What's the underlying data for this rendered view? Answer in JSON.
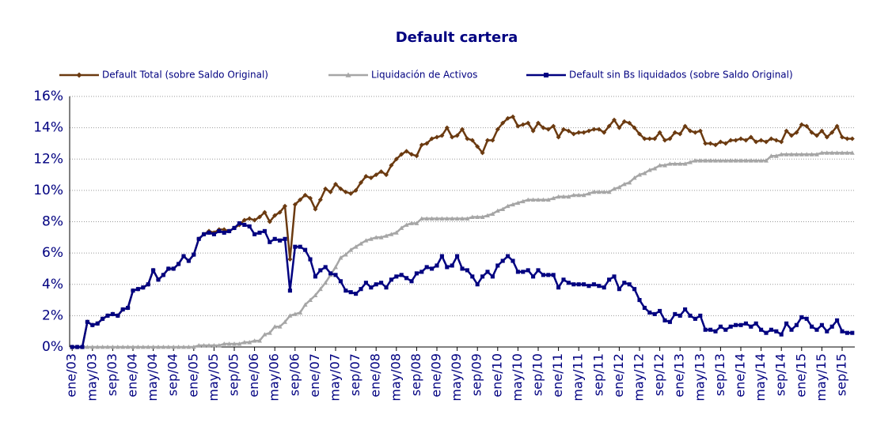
{
  "chart_data": {
    "type": "line",
    "title": "Default cartera",
    "categories": [
      "ene/03",
      null,
      null,
      null,
      "may/03",
      null,
      null,
      null,
      "sep/03",
      null,
      null,
      null,
      "ene/04",
      null,
      null,
      null,
      "may/04",
      null,
      null,
      null,
      "sep/04",
      null,
      null,
      null,
      "ene/05",
      null,
      null,
      null,
      "may/05",
      null,
      null,
      null,
      "sep/05",
      null,
      null,
      null,
      "ene/06",
      null,
      null,
      null,
      "may/06",
      null,
      null,
      null,
      "sep/06",
      null,
      null,
      null,
      "ene/07",
      null,
      null,
      null,
      "may/07",
      null,
      null,
      null,
      "sep/07",
      null,
      null,
      null,
      "ene/08",
      null,
      null,
      null,
      "may/08",
      null,
      null,
      null,
      "sep/08",
      null,
      null,
      null,
      "ene/09",
      null,
      null,
      null,
      "may/09",
      null,
      null,
      null,
      "sep/09",
      null,
      null,
      null,
      "ene/10",
      null,
      null,
      null,
      "may/10",
      null,
      null,
      null,
      "sep/10",
      null,
      null,
      null,
      "ene/11",
      null,
      null,
      null,
      "may/11",
      null,
      null,
      null,
      "sep/11",
      null,
      null,
      null,
      "ene/12",
      null,
      null,
      null,
      "may/12",
      null,
      null,
      null,
      "sep/12",
      null,
      null,
      null,
      "ene/13",
      null,
      null,
      null,
      "may/13",
      null,
      null,
      null,
      "sep/13",
      null,
      null,
      null,
      "ene/14",
      null,
      null,
      null,
      "may/14",
      null,
      null,
      null,
      "sep/14",
      null,
      null,
      null,
      "ene/15",
      null,
      null,
      null,
      "may/15",
      null,
      null,
      null,
      "sep/15",
      null,
      null
    ],
    "series": [
      {
        "name": "Default Total (sobre Saldo Original)",
        "color": "#6b3a10",
        "marker": "diamond",
        "values": [
          0,
          0,
          0,
          1.6,
          1.4,
          1.5,
          1.8,
          2.0,
          2.1,
          2.0,
          2.4,
          2.5,
          3.6,
          3.7,
          3.8,
          4.0,
          4.9,
          4.3,
          4.6,
          5.0,
          5.0,
          5.3,
          5.8,
          5.5,
          5.9,
          6.9,
          7.2,
          7.4,
          7.3,
          7.5,
          7.5,
          7.4,
          7.6,
          7.8,
          8.1,
          8.2,
          8.1,
          8.3,
          8.6,
          8.0,
          8.4,
          8.6,
          9.0,
          5.6,
          9.1,
          9.4,
          9.7,
          9.5,
          8.8,
          9.4,
          10.1,
          9.9,
          10.4,
          10.1,
          9.9,
          9.8,
          10.0,
          10.5,
          10.9,
          10.8,
          11.0,
          11.2,
          11.0,
          11.6,
          12.0,
          12.3,
          12.5,
          12.3,
          12.2,
          12.9,
          13.0,
          13.3,
          13.4,
          13.5,
          14.0,
          13.4,
          13.5,
          13.9,
          13.3,
          13.2,
          12.8,
          12.4,
          13.2,
          13.2,
          13.9,
          14.3,
          14.6,
          14.7,
          14.1,
          14.2,
          14.3,
          13.8,
          14.3,
          14.0,
          13.9,
          14.1,
          13.4,
          13.9,
          13.8,
          13.6,
          13.7,
          13.7,
          13.8,
          13.9,
          13.9,
          13.7,
          14.1,
          14.5,
          14.0,
          14.4,
          14.3,
          14.0,
          13.6,
          13.3,
          13.3,
          13.3,
          13.7,
          13.2,
          13.3,
          13.7,
          13.6,
          14.1,
          13.8,
          13.7,
          13.8,
          13.0,
          13.0,
          12.9,
          13.1,
          13.0,
          13.2,
          13.2,
          13.3,
          13.2,
          13.4,
          13.1,
          13.2,
          13.1,
          13.3,
          13.2,
          13.1,
          13.8,
          13.5,
          13.7,
          14.2,
          14.1,
          13.7,
          13.5,
          13.8,
          13.4,
          13.7,
          14.1,
          13.4,
          13.3,
          13.3
        ]
      },
      {
        "name": "Liquidación de Activos",
        "color": "#a6a6a6",
        "marker": "triangle",
        "values": [
          0,
          0,
          0,
          0,
          0,
          0,
          0,
          0,
          0,
          0,
          0,
          0,
          0,
          0,
          0,
          0,
          0,
          0,
          0,
          0,
          0,
          0,
          0,
          0,
          0,
          0.1,
          0.1,
          0.1,
          0.1,
          0.1,
          0.2,
          0.2,
          0.2,
          0.2,
          0.3,
          0.3,
          0.4,
          0.4,
          0.8,
          0.9,
          1.3,
          1.3,
          1.6,
          2.0,
          2.1,
          2.2,
          2.7,
          3.0,
          3.3,
          3.7,
          4.1,
          4.6,
          5.1,
          5.7,
          5.9,
          6.2,
          6.4,
          6.6,
          6.8,
          6.9,
          7.0,
          7.0,
          7.1,
          7.2,
          7.3,
          7.6,
          7.8,
          7.9,
          7.9,
          8.2,
          8.2,
          8.2,
          8.2,
          8.2,
          8.2,
          8.2,
          8.2,
          8.2,
          8.2,
          8.3,
          8.3,
          8.3,
          8.4,
          8.5,
          8.7,
          8.8,
          9.0,
          9.1,
          9.2,
          9.3,
          9.4,
          9.4,
          9.4,
          9.4,
          9.4,
          9.5,
          9.6,
          9.6,
          9.6,
          9.7,
          9.7,
          9.7,
          9.8,
          9.9,
          9.9,
          9.9,
          9.9,
          10.1,
          10.2,
          10.4,
          10.5,
          10.8,
          11.0,
          11.1,
          11.3,
          11.4,
          11.6,
          11.6,
          11.7,
          11.7,
          11.7,
          11.7,
          11.8,
          11.9,
          11.9,
          11.9,
          11.9,
          11.9,
          11.9,
          11.9,
          11.9,
          11.9,
          11.9,
          11.9,
          11.9,
          11.9,
          11.9,
          11.9,
          12.2,
          12.2,
          12.3,
          12.3,
          12.3,
          12.3,
          12.3,
          12.3,
          12.3,
          12.3,
          12.4,
          12.4,
          12.4,
          12.4,
          12.4,
          12.4,
          12.4
        ]
      },
      {
        "name": "Default sin Bs liquidados (sobre Saldo Original)",
        "color": "#000080",
        "marker": "square",
        "values": [
          0,
          0,
          0,
          1.6,
          1.4,
          1.5,
          1.8,
          2.0,
          2.1,
          2.0,
          2.4,
          2.5,
          3.6,
          3.7,
          3.8,
          4.0,
          4.9,
          4.3,
          4.6,
          5.0,
          5.0,
          5.3,
          5.8,
          5.5,
          5.9,
          6.9,
          7.2,
          7.3,
          7.2,
          7.4,
          7.3,
          7.4,
          7.6,
          7.9,
          7.8,
          7.7,
          7.2,
          7.3,
          7.4,
          6.7,
          6.9,
          6.8,
          6.9,
          3.6,
          6.4,
          6.4,
          6.2,
          5.6,
          4.5,
          4.9,
          5.1,
          4.7,
          4.6,
          4.2,
          3.6,
          3.5,
          3.4,
          3.7,
          4.1,
          3.8,
          4.0,
          4.1,
          3.8,
          4.3,
          4.5,
          4.6,
          4.4,
          4.2,
          4.7,
          4.8,
          5.1,
          5.0,
          5.2,
          5.8,
          5.1,
          5.2,
          5.8,
          5.0,
          4.9,
          4.5,
          4.0,
          4.5,
          4.8,
          4.5,
          5.2,
          5.5,
          5.8,
          5.5,
          4.8,
          4.8,
          4.9,
          4.5,
          4.9,
          4.6,
          4.6,
          4.6,
          3.8,
          4.3,
          4.1,
          4.0,
          4.0,
          4.0,
          3.9,
          4.0,
          3.9,
          3.8,
          4.3,
          4.5,
          3.7,
          4.1,
          4.0,
          3.7,
          3.0,
          2.5,
          2.2,
          2.1,
          2.3,
          1.7,
          1.6,
          2.1,
          2.0,
          2.4,
          2.0,
          1.8,
          2.0,
          1.1,
          1.1,
          1.0,
          1.3,
          1.1,
          1.3,
          1.4,
          1.4,
          1.5,
          1.3,
          1.5,
          1.1,
          0.9,
          1.1,
          1.0,
          0.8,
          1.5,
          1.1,
          1.4,
          1.9,
          1.8,
          1.3,
          1.1,
          1.4,
          1.0,
          1.3,
          1.7,
          1.0,
          0.9,
          0.9
        ]
      }
    ],
    "ylim": [
      0,
      16
    ],
    "yticks": [
      {
        "value": 0,
        "label": "0%"
      },
      {
        "value": 2,
        "label": "2%"
      },
      {
        "value": 4,
        "label": "4%"
      },
      {
        "value": 6,
        "label": "6%"
      },
      {
        "value": 8,
        "label": "8%"
      },
      {
        "value": 10,
        "label": "10%"
      },
      {
        "value": 12,
        "label": "12%"
      },
      {
        "value": 14,
        "label": "14%"
      },
      {
        "value": 16,
        "label": "16%"
      }
    ],
    "grid": true,
    "legend": "top"
  }
}
